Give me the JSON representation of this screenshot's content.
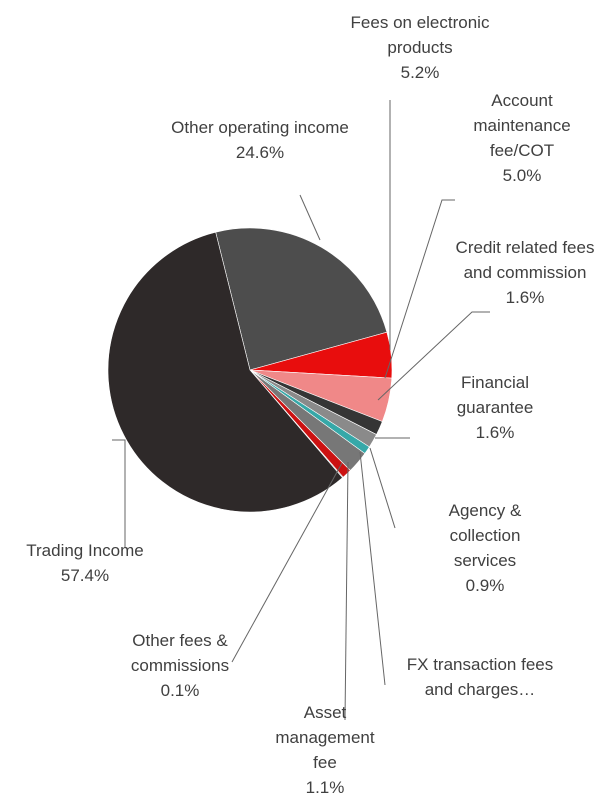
{
  "chart_data": {
    "type": "pie",
    "categories": [
      "Other operating income",
      "Fees on electronic products",
      "Account maintenance fee/COT",
      "Credit related fees and commission",
      "Financial guarantee",
      "Agency & collection services",
      "FX transaction fees and charges…",
      "Asset management fee",
      "Other fees & commissions",
      "Trading Income"
    ],
    "values": [
      24.6,
      5.2,
      5.0,
      1.6,
      1.6,
      0.9,
      2.5,
      1.1,
      0.1,
      57.4
    ],
    "value_labels": [
      "24.6%",
      "5.2%",
      "5.0%",
      "1.6%",
      "1.6%",
      "0.9%",
      null,
      "1.1%",
      "0.1%",
      "57.4%"
    ],
    "colors": [
      "#4d4d4d",
      "#e80d0d",
      "#f08888",
      "#353535",
      "#8a8a8a",
      "#36a8a8",
      "#777777",
      "#cc1111",
      "#555555",
      "#2e2929"
    ]
  }
}
